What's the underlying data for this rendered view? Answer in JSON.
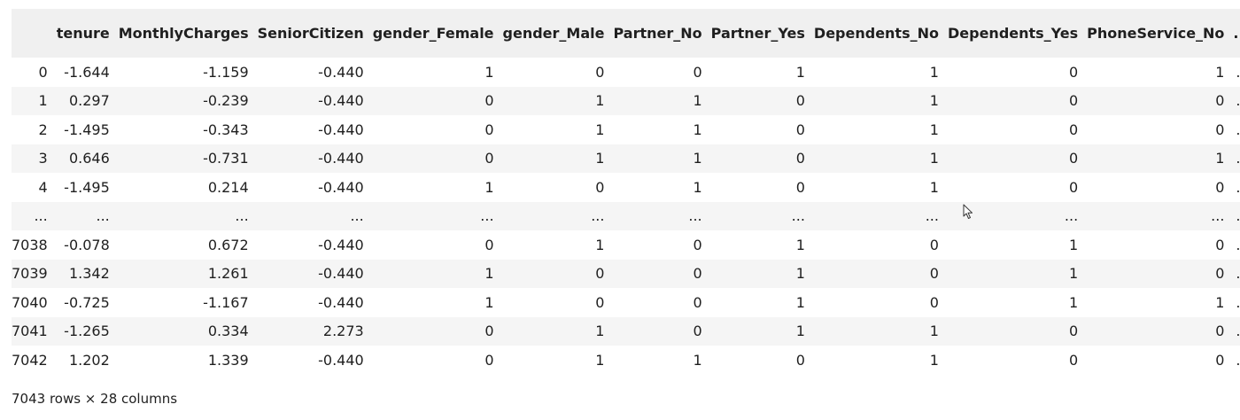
{
  "table": {
    "columns": [
      "",
      "tenure",
      "MonthlyCharges",
      "SeniorCitizen",
      "gender_Female",
      "gender_Male",
      "Partner_No",
      "Partner_Yes",
      "Dependents_No",
      "Dependents_Yes",
      "PhoneService_No",
      "..."
    ],
    "rows": [
      [
        "0",
        "-1.644",
        "-1.159",
        "-0.440",
        "1",
        "0",
        "0",
        "1",
        "1",
        "0",
        "1",
        "..."
      ],
      [
        "1",
        "0.297",
        "-0.239",
        "-0.440",
        "0",
        "1",
        "1",
        "0",
        "1",
        "0",
        "0",
        "..."
      ],
      [
        "2",
        "-1.495",
        "-0.343",
        "-0.440",
        "0",
        "1",
        "1",
        "0",
        "1",
        "0",
        "0",
        "..."
      ],
      [
        "3",
        "0.646",
        "-0.731",
        "-0.440",
        "0",
        "1",
        "1",
        "0",
        "1",
        "0",
        "1",
        "..."
      ],
      [
        "4",
        "-1.495",
        "0.214",
        "-0.440",
        "1",
        "0",
        "1",
        "0",
        "1",
        "0",
        "0",
        "..."
      ],
      [
        "...",
        "...",
        "...",
        "...",
        "...",
        "...",
        "...",
        "...",
        "...",
        "...",
        "...",
        "..."
      ],
      [
        "7038",
        "-0.078",
        "0.672",
        "-0.440",
        "0",
        "1",
        "0",
        "1",
        "0",
        "1",
        "0",
        "..."
      ],
      [
        "7039",
        "1.342",
        "1.261",
        "-0.440",
        "1",
        "0",
        "0",
        "1",
        "0",
        "1",
        "0",
        "..."
      ],
      [
        "7040",
        "-0.725",
        "-1.167",
        "-0.440",
        "1",
        "0",
        "0",
        "1",
        "0",
        "1",
        "1",
        "..."
      ],
      [
        "7041",
        "-1.265",
        "0.334",
        "2.273",
        "0",
        "1",
        "0",
        "1",
        "1",
        "0",
        "0",
        "..."
      ],
      [
        "7042",
        "1.202",
        "1.339",
        "-0.440",
        "0",
        "1",
        "1",
        "0",
        "1",
        "0",
        "0",
        "..."
      ]
    ]
  },
  "footer": {
    "shape_text": "7043 rows × 28 columns"
  },
  "cursor": {
    "icon": "mouse-pointer-icon"
  }
}
